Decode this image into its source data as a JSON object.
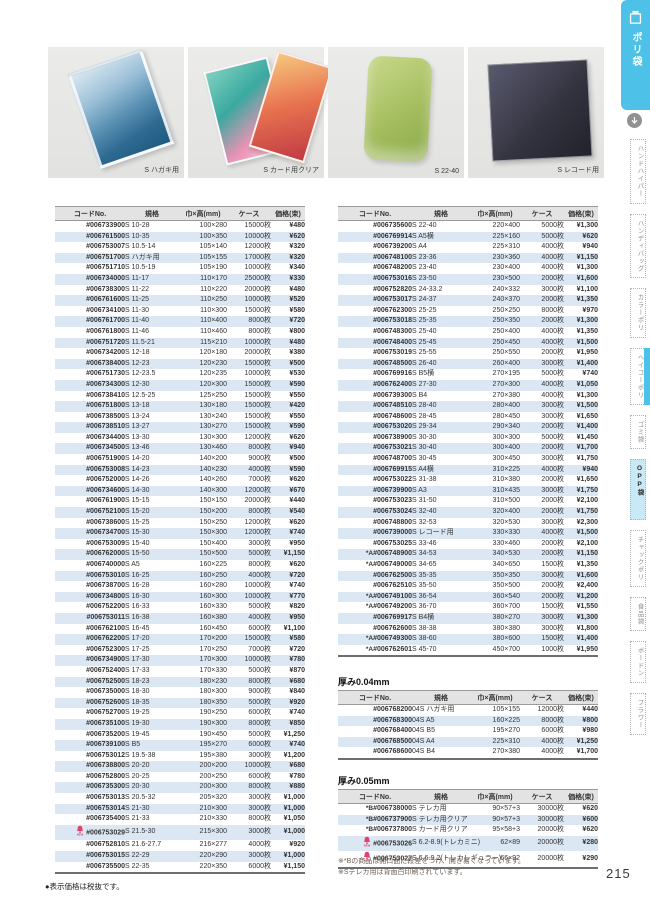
{
  "page": {
    "number": "215",
    "price_note": "●表示価格は税抜です。"
  },
  "category_tab": {
    "label": "ポリ袋",
    "icon": "poly-bag-icon"
  },
  "sidebar_tabs": [
    {
      "label": "ハンドハイパー"
    },
    {
      "label": "ハンディバッグ"
    },
    {
      "label": "カラーポリ"
    },
    {
      "label": "ヘイコーポリ",
      "edge_marker": true
    },
    {
      "label": "ゴミ袋"
    },
    {
      "label": "OPP袋",
      "active": true
    },
    {
      "label": "チャックポリ"
    },
    {
      "label": "食品袋"
    },
    {
      "label": "ボードン"
    },
    {
      "label": "フラワー"
    }
  ],
  "products": [
    {
      "caption": "S ハガキ用"
    },
    {
      "caption": "S カード用クリア"
    },
    {
      "caption": "S 22-40"
    },
    {
      "caption": "S レコード用"
    }
  ],
  "columns": [
    "コードNo.",
    "規格",
    "巾×高(mm)",
    "ケース",
    "価格(束)"
  ],
  "markers": {
    "A": "*A",
    "B": "*B",
    "new": "NEW"
  },
  "colors": {
    "accent": "#4ec1e8",
    "row_alt": "#dbe8f4",
    "code_blue": "#1e5ca8",
    "new_red": "#e0416e",
    "tab_active_bg": "#c9e9f7"
  },
  "tables": {
    "main_left": {
      "rows": [
        [
          "",
          "#006733900",
          "S 10-28",
          "100×280",
          "15000枚",
          "¥480"
        ],
        [
          "",
          "#006761500",
          "S 10-35",
          "100×350",
          "10000枚",
          "¥620"
        ],
        [
          "",
          "#006753007",
          "S 10.5-14",
          "105×140",
          "12000枚",
          "¥320"
        ],
        [
          "",
          "#006751700",
          "S ハガキ用",
          "105×155",
          "17000枚",
          "¥320"
        ],
        [
          "",
          "#006751710",
          "S 10.5-19",
          "105×190",
          "10000枚",
          "¥340"
        ],
        [
          "",
          "#006734000",
          "S 11-17",
          "110×170",
          "25000枚",
          "¥330"
        ],
        [
          "",
          "#006738300",
          "S 11-22",
          "110×220",
          "20000枚",
          "¥480"
        ],
        [
          "",
          "#006761600",
          "S 11-25",
          "110×250",
          "10000枚",
          "¥520"
        ],
        [
          "",
          "#006734100",
          "S 11-30",
          "110×300",
          "15000枚",
          "¥580"
        ],
        [
          "",
          "#006761700",
          "S 11-40",
          "110×400",
          "8000枚",
          "¥720"
        ],
        [
          "",
          "#006761800",
          "S 11-46",
          "110×460",
          "8000枚",
          "¥800"
        ],
        [
          "",
          "#006751720",
          "S 11.5-21",
          "115×210",
          "10000枚",
          "¥480"
        ],
        [
          "",
          "#006734200",
          "S 12-18",
          "120×180",
          "20000枚",
          "¥380"
        ],
        [
          "",
          "#006738400",
          "S 12-23",
          "120×230",
          "15000枚",
          "¥500"
        ],
        [
          "",
          "#006751730",
          "S 12-23.5",
          "120×235",
          "10000枚",
          "¥530"
        ],
        [
          "",
          "#006734300",
          "S 12-30",
          "120×300",
          "15000枚",
          "¥590"
        ],
        [
          "",
          "#006738410",
          "S 12.5-25",
          "125×250",
          "15000枚",
          "¥550"
        ],
        [
          "",
          "#006751800",
          "S 13-18",
          "130×180",
          "15000枚",
          "¥420"
        ],
        [
          "",
          "#006738500",
          "S 13-24",
          "130×240",
          "15000枚",
          "¥550"
        ],
        [
          "",
          "#006738510",
          "S 13-27",
          "130×270",
          "15000枚",
          "¥590"
        ],
        [
          "",
          "#006734400",
          "S 13-30",
          "130×300",
          "12000枚",
          "¥620"
        ],
        [
          "",
          "#006734500",
          "S 13-46",
          "130×460",
          "8000枚",
          "¥940"
        ],
        [
          "",
          "#006751900",
          "S 14-20",
          "140×200",
          "9000枚",
          "¥500"
        ],
        [
          "",
          "#006753008",
          "S 14-23",
          "140×230",
          "4000枚",
          "¥590"
        ],
        [
          "",
          "#006752000",
          "S 14-26",
          "140×260",
          "7000枚",
          "¥620"
        ],
        [
          "",
          "#006734600",
          "S 14-30",
          "140×300",
          "12000枚",
          "¥670"
        ],
        [
          "",
          "#006761900",
          "S 15-15",
          "150×150",
          "20000枚",
          "¥440"
        ],
        [
          "",
          "#006752100",
          "S 15-20",
          "150×200",
          "8000枚",
          "¥540"
        ],
        [
          "",
          "#006738600",
          "S 15-25",
          "150×250",
          "12000枚",
          "¥620"
        ],
        [
          "",
          "#006734700",
          "S 15-30",
          "150×300",
          "12000枚",
          "¥740"
        ],
        [
          "",
          "#006753009",
          "S 15-40",
          "150×400",
          "3000枚",
          "¥950"
        ],
        [
          "",
          "#006762000",
          "S 15-50",
          "150×500",
          "5000枚",
          "¥1,150"
        ],
        [
          "",
          "#006740000",
          "S A5",
          "160×225",
          "8000枚",
          "¥620"
        ],
        [
          "",
          "#006753010",
          "S 16-25",
          "160×250",
          "4000枚",
          "¥720"
        ],
        [
          "",
          "#006738700",
          "S 16-28",
          "160×280",
          "10000枚",
          "¥740"
        ],
        [
          "",
          "#006734800",
          "S 16-30",
          "160×300",
          "10000枚",
          "¥770"
        ],
        [
          "",
          "#006752200",
          "S 16-33",
          "160×330",
          "5000枚",
          "¥820"
        ],
        [
          "",
          "#006753011",
          "S 16-38",
          "160×380",
          "4000枚",
          "¥950"
        ],
        [
          "",
          "#006762100",
          "S 16-45",
          "160×450",
          "6000枚",
          "¥1,100"
        ],
        [
          "",
          "#006762200",
          "S 17-20",
          "170×200",
          "15000枚",
          "¥580"
        ],
        [
          "",
          "#006752300",
          "S 17-25",
          "170×250",
          "7000枚",
          "¥720"
        ],
        [
          "",
          "#006734900",
          "S 17-30",
          "170×300",
          "10000枚",
          "¥780"
        ],
        [
          "",
          "#006752400",
          "S 17-33",
          "170×330",
          "5000枚",
          "¥870"
        ],
        [
          "",
          "#006752500",
          "S 18-23",
          "180×230",
          "8000枚",
          "¥680"
        ],
        [
          "",
          "#006735000",
          "S 18-30",
          "180×300",
          "9000枚",
          "¥840"
        ],
        [
          "",
          "#006752600",
          "S 18-35",
          "180×350",
          "5000枚",
          "¥920"
        ],
        [
          "",
          "#006752700",
          "S 19-25",
          "190×250",
          "6000枚",
          "¥740"
        ],
        [
          "",
          "#006735100",
          "S 19-30",
          "190×300",
          "8000枚",
          "¥850"
        ],
        [
          "",
          "#006735200",
          "S 19-45",
          "190×450",
          "5000枚",
          "¥1,250"
        ],
        [
          "",
          "#006739100",
          "S B5",
          "195×270",
          "6000枚",
          "¥740"
        ],
        [
          "",
          "#006753012",
          "S 19.5-38",
          "195×380",
          "3000枚",
          "¥1,200"
        ],
        [
          "",
          "#006738800",
          "S 20-20",
          "200×200",
          "10000枚",
          "¥680"
        ],
        [
          "",
          "#006752800",
          "S 20-25",
          "200×250",
          "6000枚",
          "¥780"
        ],
        [
          "",
          "#006735300",
          "S 20-30",
          "200×300",
          "8000枚",
          "¥880"
        ],
        [
          "",
          "#006753013",
          "S 20.5-32",
          "205×320",
          "3000枚",
          "¥1,000"
        ],
        [
          "",
          "#006753014",
          "S 21-30",
          "210×300",
          "3000枚",
          "¥1,000"
        ],
        [
          "",
          "#006735400",
          "S 21-33",
          "210×330",
          "8000枚",
          "¥1,050"
        ],
        [
          "new",
          "#006753029",
          "S 21.5-30",
          "215×300",
          "3000枚",
          "¥1,000"
        ],
        [
          "",
          "#006752810",
          "S 21.6-27.7",
          "216×277",
          "4000枚",
          "¥920"
        ],
        [
          "",
          "#006753015",
          "S 22-29",
          "220×290",
          "3000枚",
          "¥1,000"
        ],
        [
          "",
          "#006735500",
          "S 22-35",
          "220×350",
          "6000枚",
          "¥1,150"
        ]
      ]
    },
    "main_right": {
      "rows": [
        [
          "",
          "#006735600",
          "S 22-40",
          "220×400",
          "5000枚",
          "¥1,300"
        ],
        [
          "",
          "#006769914",
          "S A5横",
          "225×160",
          "5000枚",
          "¥620"
        ],
        [
          "",
          "#006739200",
          "S A4",
          "225×310",
          "4000枚",
          "¥940"
        ],
        [
          "",
          "#006748100",
          "S 23-36",
          "230×360",
          "4000枚",
          "¥1,150"
        ],
        [
          "",
          "#006748200",
          "S 23-40",
          "230×400",
          "4000枚",
          "¥1,300"
        ],
        [
          "",
          "#006753016",
          "S 23-50",
          "230×500",
          "2000枚",
          "¥1,600"
        ],
        [
          "",
          "#006752820",
          "S 24-33.2",
          "240×332",
          "3000枚",
          "¥1,100"
        ],
        [
          "",
          "#006753017",
          "S 24-37",
          "240×370",
          "2000枚",
          "¥1,350"
        ],
        [
          "",
          "#006762300",
          "S 25-25",
          "250×250",
          "8000枚",
          "¥970"
        ],
        [
          "",
          "#006753018",
          "S 25-35",
          "250×350",
          "2000枚",
          "¥1,300"
        ],
        [
          "",
          "#006748300",
          "S 25-40",
          "250×400",
          "4000枚",
          "¥1,350"
        ],
        [
          "",
          "#006748400",
          "S 25-45",
          "250×450",
          "4000枚",
          "¥1,500"
        ],
        [
          "",
          "#006753019",
          "S 25-55",
          "250×550",
          "2000枚",
          "¥1,950"
        ],
        [
          "",
          "#006748500",
          "S 26-40",
          "260×400",
          "3000枚",
          "¥1,400"
        ],
        [
          "",
          "#006769916",
          "S B5横",
          "270×195",
          "5000枚",
          "¥740"
        ],
        [
          "",
          "#006762400",
          "S 27-30",
          "270×300",
          "4000枚",
          "¥1,050"
        ],
        [
          "",
          "#006739300",
          "S B4",
          "270×380",
          "4000枚",
          "¥1,300"
        ],
        [
          "",
          "#006748510",
          "S 28-40",
          "280×400",
          "3000枚",
          "¥1,500"
        ],
        [
          "",
          "#006748600",
          "S 28-45",
          "280×450",
          "3000枚",
          "¥1,650"
        ],
        [
          "",
          "#006753020",
          "S 29-34",
          "290×340",
          "2000枚",
          "¥1,400"
        ],
        [
          "",
          "#006738900",
          "S 30-30",
          "300×300",
          "5000枚",
          "¥1,450"
        ],
        [
          "",
          "#006753021",
          "S 30-40",
          "300×400",
          "2000枚",
          "¥1,700"
        ],
        [
          "",
          "#006748700",
          "S 30-45",
          "300×450",
          "3000枚",
          "¥1,750"
        ],
        [
          "",
          "#006769915",
          "S A4横",
          "310×225",
          "4000枚",
          "¥940"
        ],
        [
          "",
          "#006753022",
          "S 31-38",
          "310×380",
          "2000枚",
          "¥1,650"
        ],
        [
          "",
          "#006739900",
          "S A3",
          "310×435",
          "3000枚",
          "¥1,750"
        ],
        [
          "",
          "#006753023",
          "S 31-50",
          "310×500",
          "2000枚",
          "¥2,100"
        ],
        [
          "",
          "#006753024",
          "S 32-40",
          "320×400",
          "2000枚",
          "¥1,750"
        ],
        [
          "",
          "#006748800",
          "S 32-53",
          "320×530",
          "3000枚",
          "¥2,300"
        ],
        [
          "",
          "#006739000",
          "S レコード用",
          "330×330",
          "4000枚",
          "¥1,500"
        ],
        [
          "",
          "#006753025",
          "S 33-46",
          "330×460",
          "2000枚",
          "¥2,100"
        ],
        [
          "A",
          "#006748900",
          "S 34-53",
          "340×530",
          "2000枚",
          "¥1,150"
        ],
        [
          "A",
          "#006749000",
          "S 34-65",
          "340×650",
          "1500枚",
          "¥1,350"
        ],
        [
          "",
          "#006762500",
          "S 35-35",
          "350×350",
          "3000枚",
          "¥1,600"
        ],
        [
          "",
          "#006762510",
          "S 35-50",
          "350×500",
          "2000枚",
          "¥2,400"
        ],
        [
          "A",
          "#006749100",
          "S 36-54",
          "360×540",
          "2000枚",
          "¥1,200"
        ],
        [
          "A",
          "#006749200",
          "S 36-70",
          "360×700",
          "1500枚",
          "¥1,550"
        ],
        [
          "",
          "#006769917",
          "S B4横",
          "380×270",
          "3000枚",
          "¥1,300"
        ],
        [
          "",
          "#006762600",
          "S 38-38",
          "380×380",
          "3000枚",
          "¥1,800"
        ],
        [
          "A",
          "#006749300",
          "S 38-60",
          "380×600",
          "1500枚",
          "¥1,400"
        ],
        [
          "A",
          "#006762601",
          "S 45-70",
          "450×700",
          "1000枚",
          "¥1,950"
        ]
      ]
    },
    "thickness_004": {
      "title": "厚み0.04mm",
      "rows": [
        [
          "",
          "#006768200",
          "04S ハガキ用",
          "105×155",
          "12000枚",
          "¥440"
        ],
        [
          "",
          "#006768300",
          "04S A5",
          "160×225",
          "8000枚",
          "¥800"
        ],
        [
          "",
          "#006768400",
          "04S B5",
          "195×270",
          "6000枚",
          "¥980"
        ],
        [
          "",
          "#006768500",
          "04S A4",
          "225×310",
          "4000枚",
          "¥1,250"
        ],
        [
          "",
          "#006768600",
          "04S B4",
          "270×380",
          "4000枚",
          "¥1,700"
        ]
      ]
    },
    "thickness_005": {
      "title": "厚み0.05mm",
      "rows": [
        [
          "B",
          "#006738000",
          "S テレカ用",
          "90×57+3",
          "30000枚",
          "¥620"
        ],
        [
          "B",
          "#006737900",
          "S テレカ用クリア",
          "90×57+3",
          "30000枚",
          "¥600"
        ],
        [
          "B",
          "#006737800",
          "S カード用クリア",
          "95×58+3",
          "20000枚",
          "¥620"
        ],
        [
          "new",
          "#006753026",
          "S 6.2-8.9(トレカミニ)",
          "62×89",
          "20000枚",
          "¥280"
        ],
        [
          "new",
          "#006753027",
          "S 6.6-9.2(トレカレギュラー)",
          "66×92",
          "20000枚",
          "¥290"
        ]
      ],
      "notes": [
        "※*Bの商品は開口面に段差をつけ、開き易くなっています。",
        "※Sテレカ用は背面白印刷されています。"
      ]
    }
  }
}
